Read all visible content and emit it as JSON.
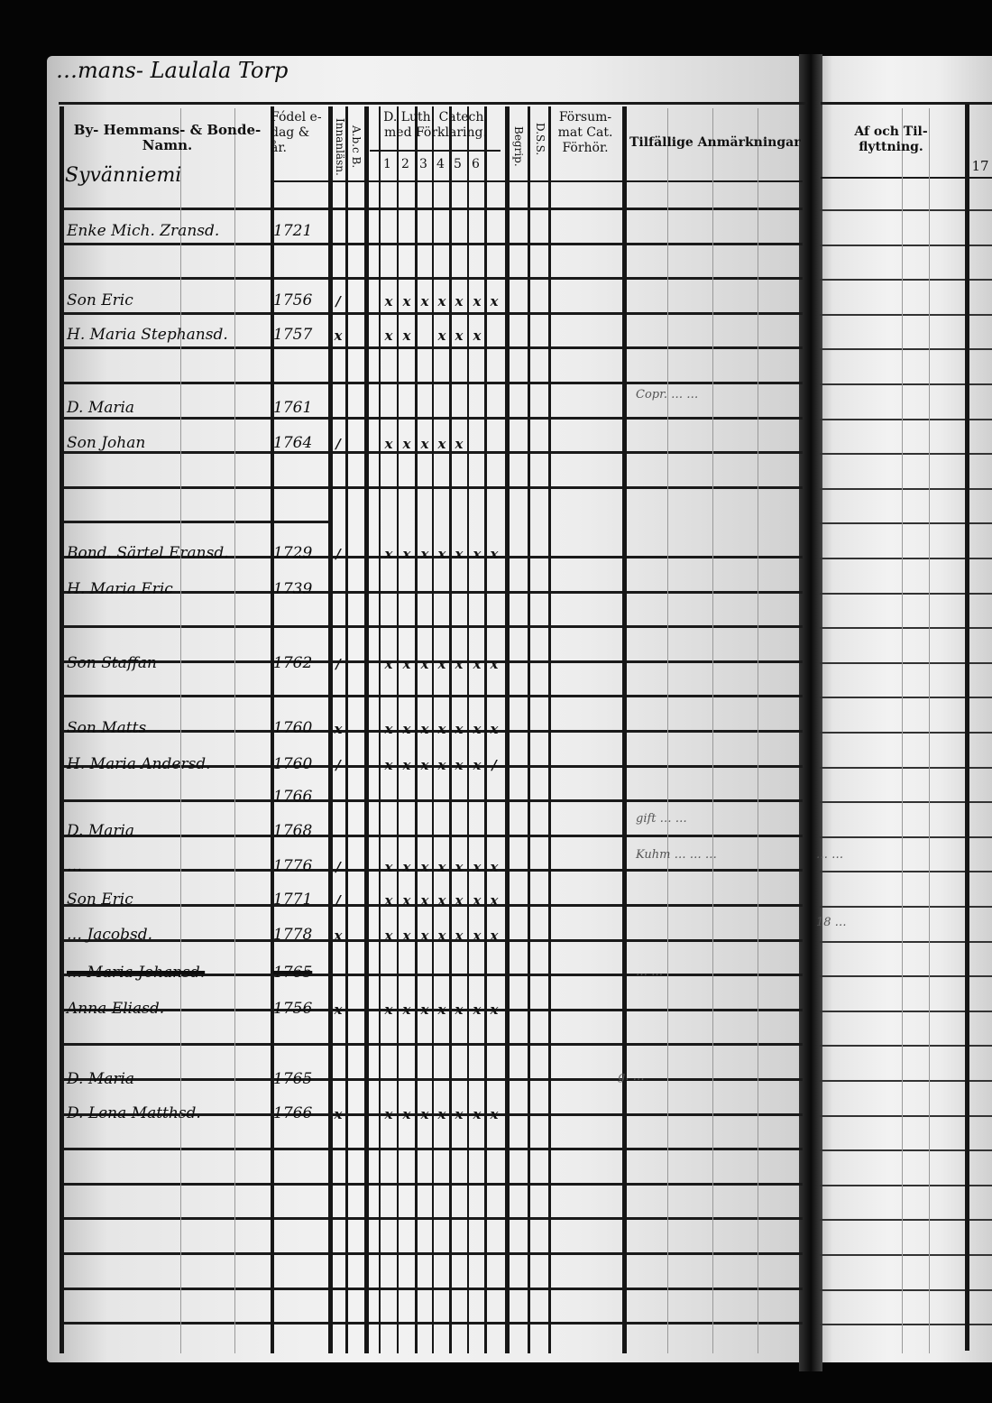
{
  "page_title": "…mans- Laulala Torp",
  "headers": {
    "name": "By- Hemmans- & Bonde-Namn.",
    "birth": "Fódel e-dag & år.",
    "abc": "A.b.c B.",
    "reading": "Innanläsn.",
    "catechism": "D. Luth. Catech. med Förklaring.",
    "catechism_cols": [
      "1",
      "2",
      "3",
      "4",
      "5",
      "6"
    ],
    "begrip": "Begrip.",
    "dss": "D.S.S.",
    "forsummat": "Försum-mat Cat. Förhör.",
    "remarks": "Tilfällige Anmärkningar",
    "moving": "Af och Til-flyttning.",
    "next_col": "17"
  },
  "farm_name": "Syvänniemi",
  "entries": [
    {
      "name": "Enke Mich. Zransd.",
      "year": "1721",
      "marks": []
    },
    {
      "name": "Son Eric",
      "year": "1756",
      "marks": [
        "/",
        "x",
        "x",
        "x",
        "x",
        "x",
        "x",
        "x"
      ]
    },
    {
      "name": "H. Maria Stephansd.",
      "year": "1757",
      "marks": [
        "x",
        "x",
        "x",
        "",
        "x",
        "x",
        "x",
        ""
      ]
    },
    {
      "name": "D. Maria",
      "year": "1761",
      "marks": []
    },
    {
      "name": "Son Johan",
      "year": "1764",
      "marks": [
        "/",
        "x",
        "x",
        "x",
        "x",
        "x",
        "",
        ""
      ]
    },
    {
      "name": "Bond. Särtel Eransd.",
      "year": "1729",
      "marks": [
        "/",
        "x",
        "x",
        "x",
        "x",
        "x",
        "x",
        "x"
      ]
    },
    {
      "name": "H. Maria Eric",
      "year": "1739",
      "marks": []
    },
    {
      "name": "Son Staffan",
      "year": "1762",
      "marks": [
        "/",
        "x",
        "x",
        "x",
        "x",
        "x",
        "x",
        "x"
      ]
    },
    {
      "name": "Son Matts",
      "year": "1760",
      "marks": [
        "x",
        "x",
        "x",
        "x",
        "x",
        "x",
        "x",
        "x"
      ]
    },
    {
      "name": "H. Maria Andersd.",
      "year": "1760",
      "marks": [
        "/",
        "x",
        "x",
        "x",
        "x",
        "x",
        "x",
        "/"
      ]
    },
    {
      "name": "",
      "year": "1766",
      "marks": []
    },
    {
      "name": "D. Maria",
      "year": "1768",
      "marks": []
    },
    {
      "name": "…",
      "year": "1776",
      "marks": [
        "/",
        "x",
        "x",
        "x",
        "x",
        "x",
        "x",
        "x"
      ]
    },
    {
      "name": "Son Eric",
      "year": "1771",
      "marks": [
        "/",
        "x",
        "x",
        "x",
        "x",
        "x",
        "x",
        "x"
      ]
    },
    {
      "name": "… Jacobsd.",
      "year": "1778",
      "marks": [
        "x",
        "x",
        "x",
        "x",
        "x",
        "x",
        "x",
        "x"
      ]
    },
    {
      "name": "… Maria Johansd.",
      "year": "1765",
      "marks": [],
      "struck": true
    },
    {
      "name": "Anna Eliasd.",
      "year": "1756",
      "marks": [
        "x",
        "x",
        "x",
        "x",
        "x",
        "x",
        "x",
        "x"
      ]
    },
    {
      "name": "D. Maria",
      "year": "1765",
      "marks": []
    },
    {
      "name": "D. Lena Matthsd.",
      "year": "1766",
      "marks": [
        "x",
        "x",
        "x",
        "x",
        "x",
        "x",
        "x",
        "x"
      ]
    }
  ],
  "remarks": [
    {
      "text": "Copr. … …"
    },
    {
      "text": "gift … …"
    },
    {
      "text": "Kuhm … … …"
    },
    {
      "text": "… …"
    },
    {
      "text": "g. …"
    }
  ],
  "moving_notes": [
    "… …",
    "18 …"
  ]
}
